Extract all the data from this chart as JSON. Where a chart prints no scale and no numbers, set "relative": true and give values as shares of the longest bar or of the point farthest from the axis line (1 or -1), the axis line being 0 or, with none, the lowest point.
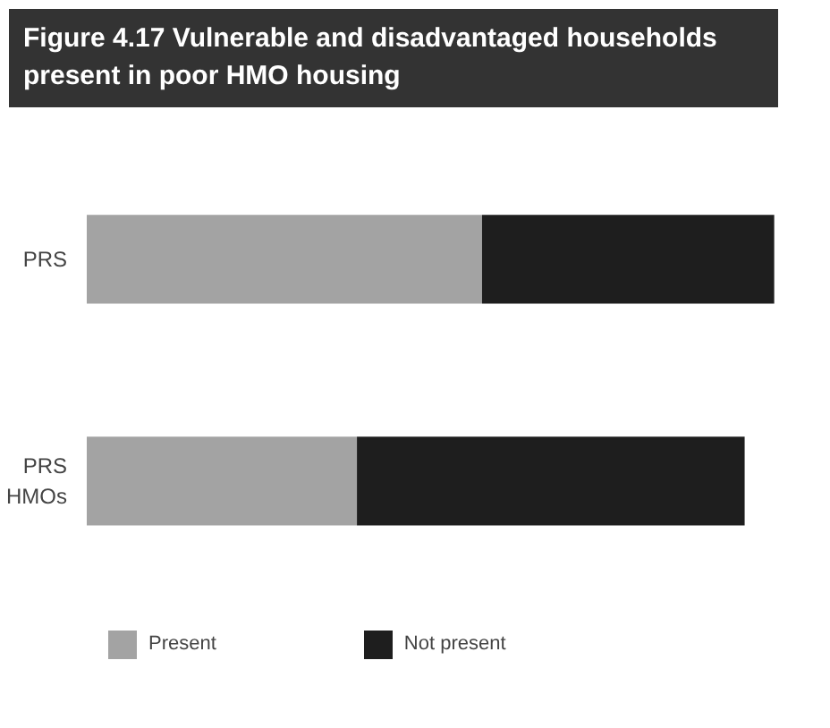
{
  "chart_data": {
    "type": "bar",
    "orientation": "horizontal",
    "stacked": true,
    "relative": true,
    "title": "Figure 4.17 Vulnerable and disadvantaged households present in poor HMO housing",
    "categories": [
      "PRS",
      "PRS HMOs"
    ],
    "series": [
      {
        "name": "Present",
        "color": "#a3a3a3",
        "values": [
          0.575,
          0.393
        ]
      },
      {
        "name": "Not present",
        "color": "#1e1e1e",
        "values": [
          0.425,
          0.564
        ]
      }
    ],
    "legend": "bottom",
    "grid": false
  }
}
